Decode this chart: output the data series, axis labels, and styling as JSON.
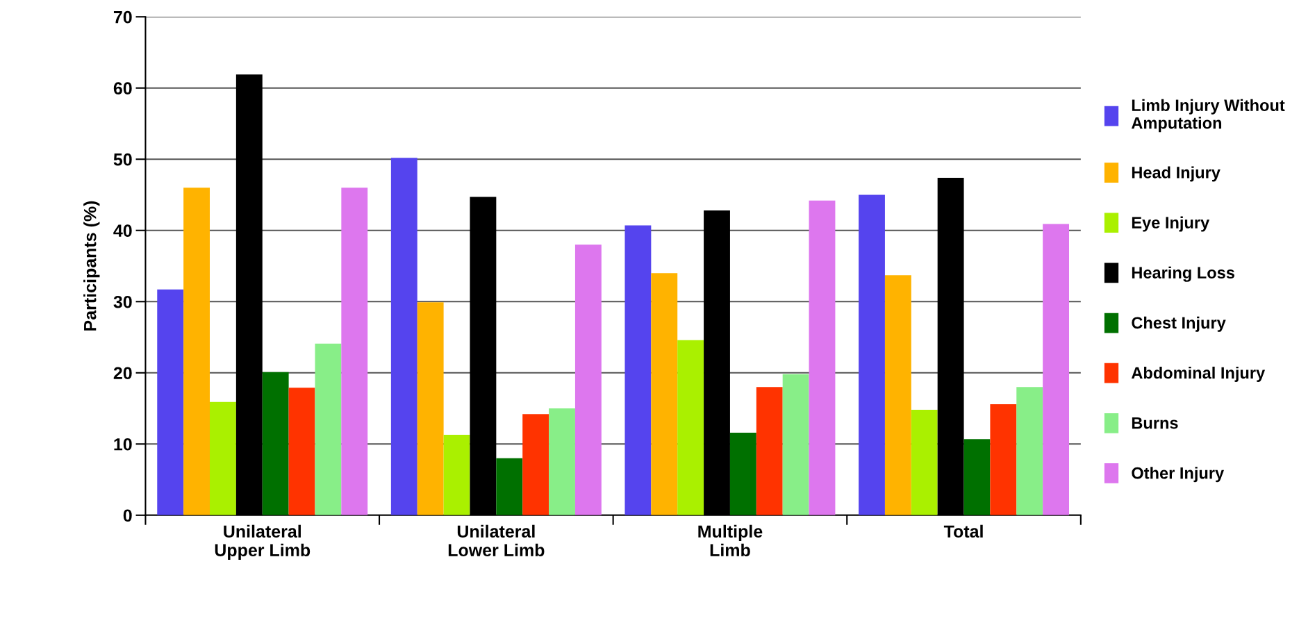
{
  "chart_data": {
    "type": "bar",
    "ylabel": "Participants (%)",
    "categories": [
      "Unilateral\nUpper Limb",
      "Unilateral\nLower Limb",
      "Multiple\nLimb",
      "Total"
    ],
    "series": [
      {
        "name": "Limb Injury Without\nAmputation",
        "color": "#5544ee",
        "values": [
          31.7,
          50.2,
          40.7,
          45.0
        ]
      },
      {
        "name": "Head Injury",
        "color": "#ffb300",
        "values": [
          46.0,
          29.9,
          34.0,
          33.7
        ]
      },
      {
        "name": "Eye Injury",
        "color": "#aaf000",
        "values": [
          15.9,
          11.3,
          24.6,
          14.8
        ]
      },
      {
        "name": "Hearing Loss",
        "color": "#000000",
        "values": [
          61.9,
          44.7,
          42.8,
          47.4
        ]
      },
      {
        "name": "Chest Injury",
        "color": "#007000",
        "values": [
          20.1,
          8.0,
          11.6,
          10.7
        ]
      },
      {
        "name": "Abdominal Injury",
        "color": "#ff3300",
        "values": [
          17.9,
          14.2,
          18.0,
          15.6
        ]
      },
      {
        "name": "Burns",
        "color": "#88ee88",
        "values": [
          24.1,
          15.0,
          19.8,
          18.0
        ]
      },
      {
        "name": "Other Injury",
        "color": "#dd77ee",
        "values": [
          46.0,
          38.0,
          44.2,
          40.9
        ]
      }
    ],
    "ylim": [
      0,
      70
    ],
    "yticks": [
      0,
      10,
      20,
      30,
      40,
      50,
      60,
      70
    ],
    "grid": "y",
    "legend": "right"
  }
}
